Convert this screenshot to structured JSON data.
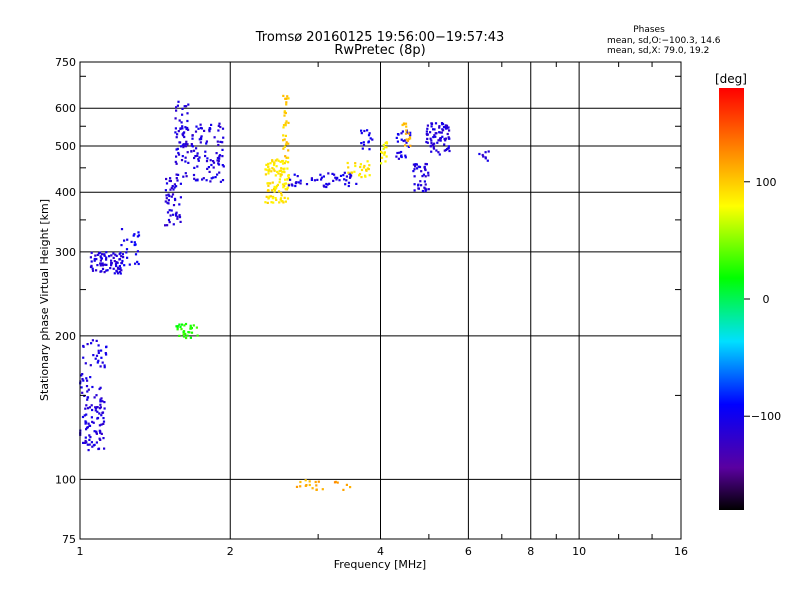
{
  "chart_data": {
    "type": "scatter",
    "title": "Tromsø 20160125 19:56:00−19:57:43",
    "subtitle": "RwPretec (8p)",
    "xlabel": "Frequency [MHz]",
    "ylabel": "Stationary phase Virtual Height [km]",
    "x_scale": "log",
    "y_scale": "log",
    "xlim": [
      1,
      16
    ],
    "ylim": [
      75,
      750
    ],
    "x_ticks": [
      1,
      2,
      4,
      6,
      8,
      10,
      16
    ],
    "x_tick_labels": [
      "1",
      "2",
      "4",
      "6",
      "8",
      "10",
      "16"
    ],
    "y_ticks": [
      75,
      100,
      200,
      300,
      400,
      500,
      600,
      750
    ],
    "y_tick_labels": [
      "75",
      "100",
      "200",
      "300",
      "400",
      "500",
      "600",
      "750"
    ],
    "grid": true,
    "phase_info": {
      "title": "Phases",
      "line_o": "mean, sd,O:−100.3, 14.6",
      "line_x": "mean, sd,X:  79.0, 19.2"
    },
    "colorbar": {
      "label": "[deg]",
      "range": [
        -180,
        180
      ],
      "ticks": [
        100,
        0,
        -100
      ],
      "tick_labels": [
        "100",
        "0",
        "−100"
      ]
    },
    "clusters": [
      {
        "x": [
          1.0,
          1.12
        ],
        "y": [
          115,
          155
        ],
        "n": 90,
        "phase": -110
      },
      {
        "x": [
          1.0,
          1.13
        ],
        "y": [
          155,
          200
        ],
        "n": 40,
        "phase": -105
      },
      {
        "x": [
          1.05,
          1.22
        ],
        "y": [
          270,
          300
        ],
        "n": 80,
        "phase": -110
      },
      {
        "x": [
          1.2,
          1.32
        ],
        "y": [
          280,
          340
        ],
        "n": 25,
        "phase": -100
      },
      {
        "x": [
          1.48,
          1.6
        ],
        "y": [
          340,
          440
        ],
        "n": 50,
        "phase": -110
      },
      {
        "x": [
          1.55,
          1.65
        ],
        "y": [
          430,
          620
        ],
        "n": 60,
        "phase": -110
      },
      {
        "x": [
          1.67,
          1.95
        ],
        "y": [
          420,
          560
        ],
        "n": 90,
        "phase": -108
      },
      {
        "x": [
          1.55,
          1.72
        ],
        "y": [
          198,
          212
        ],
        "n": 30,
        "phase": 25
      },
      {
        "x": [
          2.35,
          2.62
        ],
        "y": [
          380,
          470
        ],
        "n": 110,
        "phase": 90
      },
      {
        "x": [
          2.55,
          2.62
        ],
        "y": [
          470,
          640
        ],
        "n": 30,
        "phase": 100
      },
      {
        "x": [
          2.62,
          3.6
        ],
        "y": [
          410,
          440
        ],
        "n": 50,
        "phase": -105
      },
      {
        "x": [
          3.4,
          3.85
        ],
        "y": [
          430,
          470
        ],
        "n": 25,
        "phase": 90
      },
      {
        "x": [
          3.65,
          3.85
        ],
        "y": [
          490,
          540
        ],
        "n": 15,
        "phase": -100
      },
      {
        "x": [
          4.0,
          4.15
        ],
        "y": [
          460,
          510
        ],
        "n": 15,
        "phase": 80
      },
      {
        "x": [
          4.3,
          4.6
        ],
        "y": [
          470,
          540
        ],
        "n": 25,
        "phase": -105
      },
      {
        "x": [
          4.42,
          4.6
        ],
        "y": [
          500,
          560
        ],
        "n": 15,
        "phase": 110
      },
      {
        "x": [
          4.65,
          5.0
        ],
        "y": [
          400,
          460
        ],
        "n": 40,
        "phase": -110
      },
      {
        "x": [
          4.9,
          5.5
        ],
        "y": [
          480,
          560
        ],
        "n": 80,
        "phase": -110
      },
      {
        "x": [
          6.3,
          6.6
        ],
        "y": [
          460,
          490
        ],
        "n": 8,
        "phase": -110
      },
      {
        "x": [
          2.7,
          3.1
        ],
        "y": [
          95,
          100
        ],
        "n": 15,
        "phase": 110
      },
      {
        "x": [
          3.2,
          3.5
        ],
        "y": [
          95,
          99
        ],
        "n": 6,
        "phase": 120
      }
    ]
  }
}
